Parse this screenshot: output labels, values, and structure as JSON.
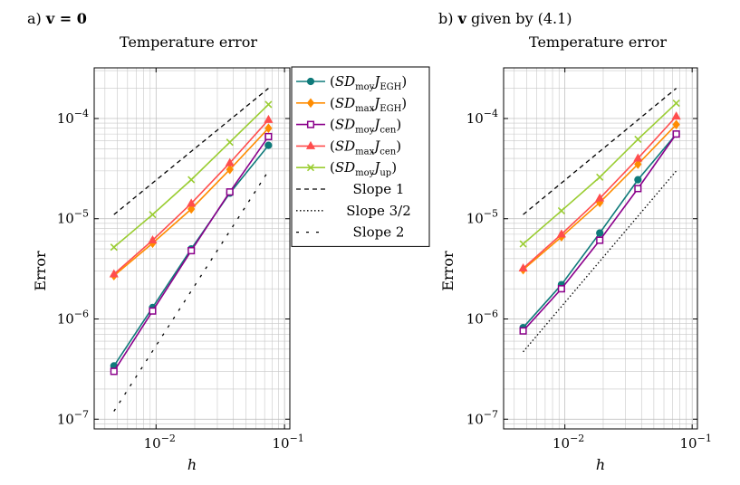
{
  "chart_data": [
    {
      "type": "line",
      "panel_label": "a) v = 0",
      "title": "Temperature error",
      "xlabel": "h",
      "ylabel": "Error",
      "xscale": "log",
      "yscale": "log",
      "xlim": [
        0.0033,
        0.11
      ],
      "ylim": [
        8e-08,
        0.00032
      ],
      "xticks": [
        {
          "value": 0.01,
          "label": "10^-2"
        },
        {
          "value": 0.1,
          "label": "10^-1"
        }
      ],
      "yticks": [
        {
          "value": 1e-07,
          "label": "10^-7"
        },
        {
          "value": 1e-06,
          "label": "10^-6"
        },
        {
          "value": 1e-05,
          "label": "10^-5"
        },
        {
          "value": 0.0001,
          "label": "10^-4"
        }
      ],
      "grid": true,
      "series": [
        {
          "id": "sd_moy_j_egh",
          "color": "#0f7a7a",
          "marker": "circle",
          "x": [
            0.0047,
            0.0094,
            0.0188,
            0.0375,
            0.075
          ],
          "y": [
            3.4e-07,
            1.3e-06,
            5e-06,
            1.8e-05,
            5.4e-05
          ]
        },
        {
          "id": "sd_max_j_egh",
          "color": "#ff8c00",
          "marker": "diamond",
          "x": [
            0.0047,
            0.0094,
            0.0188,
            0.0375,
            0.075
          ],
          "y": [
            2.7e-06,
            5.7e-06,
            1.25e-05,
            3.1e-05,
            8e-05
          ]
        },
        {
          "id": "sd_moy_j_cen",
          "color": "#8b008b",
          "marker": "square",
          "x": [
            0.0047,
            0.0094,
            0.0188,
            0.0375,
            0.075
          ],
          "y": [
            3e-07,
            1.2e-06,
            4.8e-06,
            1.85e-05,
            6.6e-05
          ]
        },
        {
          "id": "sd_max_j_cen",
          "color": "#ff4d4d",
          "marker": "triangle",
          "x": [
            0.0047,
            0.0094,
            0.0188,
            0.0375,
            0.075
          ],
          "y": [
            2.8e-06,
            6.1e-06,
            1.42e-05,
            3.6e-05,
            9.7e-05
          ]
        },
        {
          "id": "sd_moy_j_up",
          "color": "#9acd32",
          "marker": "cross",
          "x": [
            0.0047,
            0.0094,
            0.0188,
            0.0375,
            0.075
          ],
          "y": [
            5.2e-06,
            1.1e-05,
            2.45e-05,
            5.8e-05,
            0.000138
          ]
        },
        {
          "id": "slope_1",
          "color": "#000000",
          "marker": "none",
          "dash": "5,4",
          "x": [
            0.0047,
            0.075
          ],
          "y": [
            1.1e-05,
            0.0002
          ]
        },
        {
          "id": "slope_2",
          "color": "#000000",
          "marker": "none",
          "dash": "3,8",
          "x": [
            0.0047,
            0.075
          ],
          "y": [
            1.2e-07,
            3e-05
          ]
        }
      ]
    },
    {
      "type": "line",
      "panel_label": "b) v given by (4.1)",
      "title": "Temperature error",
      "xlabel": "h",
      "ylabel": "Error",
      "xscale": "log",
      "yscale": "log",
      "xlim": [
        0.0033,
        0.11
      ],
      "ylim": [
        8e-08,
        0.00032
      ],
      "xticks": [
        {
          "value": 0.01,
          "label": "10^-2"
        },
        {
          "value": 0.1,
          "label": "10^-1"
        }
      ],
      "yticks": [
        {
          "value": 1e-07,
          "label": "10^-7"
        },
        {
          "value": 1e-06,
          "label": "10^-6"
        },
        {
          "value": 1e-05,
          "label": "10^-5"
        },
        {
          "value": 0.0001,
          "label": "10^-4"
        }
      ],
      "grid": true,
      "series": [
        {
          "id": "sd_moy_j_egh",
          "color": "#0f7a7a",
          "marker": "circle",
          "x": [
            0.0047,
            0.0094,
            0.0188,
            0.0375,
            0.075
          ],
          "y": [
            8.2e-07,
            2.2e-06,
            7.2e-06,
            2.45e-05,
            7e-05
          ]
        },
        {
          "id": "sd_max_j_egh",
          "color": "#ff8c00",
          "marker": "diamond",
          "x": [
            0.0047,
            0.0094,
            0.0188,
            0.0375,
            0.075
          ],
          "y": [
            3.1e-06,
            6.6e-06,
            1.45e-05,
            3.5e-05,
            8.7e-05
          ]
        },
        {
          "id": "sd_moy_j_cen",
          "color": "#8b008b",
          "marker": "square",
          "x": [
            0.0047,
            0.0094,
            0.0188,
            0.0375,
            0.075
          ],
          "y": [
            7.6e-07,
            2e-06,
            6.1e-06,
            2e-05,
            7e-05
          ]
        },
        {
          "id": "sd_max_j_cen",
          "color": "#ff4d4d",
          "marker": "triangle",
          "x": [
            0.0047,
            0.0094,
            0.0188,
            0.0375,
            0.075
          ],
          "y": [
            3.2e-06,
            7e-06,
            1.6e-05,
            4e-05,
            0.000105
          ]
        },
        {
          "id": "sd_moy_j_up",
          "color": "#9acd32",
          "marker": "cross",
          "x": [
            0.0047,
            0.0094,
            0.0188,
            0.0375,
            0.075
          ],
          "y": [
            5.6e-06,
            1.2e-05,
            2.6e-05,
            6.2e-05,
            0.000142
          ]
        },
        {
          "id": "slope_1",
          "color": "#000000",
          "marker": "none",
          "dash": "5,4",
          "x": [
            0.0047,
            0.075
          ],
          "y": [
            1.1e-05,
            0.0002
          ]
        },
        {
          "id": "slope_3_2",
          "color": "#000000",
          "marker": "none",
          "dash": "1.5,2.5",
          "x": [
            0.0047,
            0.075
          ],
          "y": [
            4.7e-07,
            3e-05
          ]
        }
      ]
    }
  ],
  "legend": {
    "placement": "between-panels",
    "entries": [
      {
        "marker": "circle",
        "color": "#0f7a7a",
        "dash": "",
        "prefix": "(",
        "sd": "SD",
        "sub1": "moy",
        "j": "J",
        "sub2": "EGH",
        "suffix": ")"
      },
      {
        "marker": "diamond",
        "color": "#ff8c00",
        "dash": "",
        "prefix": "(",
        "sd": "SD",
        "sub1": "max",
        "j": "J",
        "sub2": "EGH",
        "suffix": ")"
      },
      {
        "marker": "square",
        "color": "#8b008b",
        "dash": "",
        "prefix": "(",
        "sd": "SD",
        "sub1": "moy",
        "j": "J",
        "sub2": "cen",
        "suffix": ")"
      },
      {
        "marker": "triangle",
        "color": "#ff4d4d",
        "dash": "",
        "prefix": "(",
        "sd": "SD",
        "sub1": "max",
        "j": "J",
        "sub2": "cen",
        "suffix": ")"
      },
      {
        "marker": "cross",
        "color": "#9acd32",
        "dash": "",
        "prefix": "(",
        "sd": "SD",
        "sub1": "moy",
        "j": "J",
        "sub2": "up",
        "suffix": ")"
      },
      {
        "marker": "none",
        "color": "#000000",
        "dash": "5,4",
        "text": "Slope 1"
      },
      {
        "marker": "none",
        "color": "#000000",
        "dash": "1.5,2.5",
        "text": "Slope 3/2"
      },
      {
        "marker": "none",
        "color": "#000000",
        "dash": "3,8",
        "text": "Slope 2"
      }
    ]
  }
}
